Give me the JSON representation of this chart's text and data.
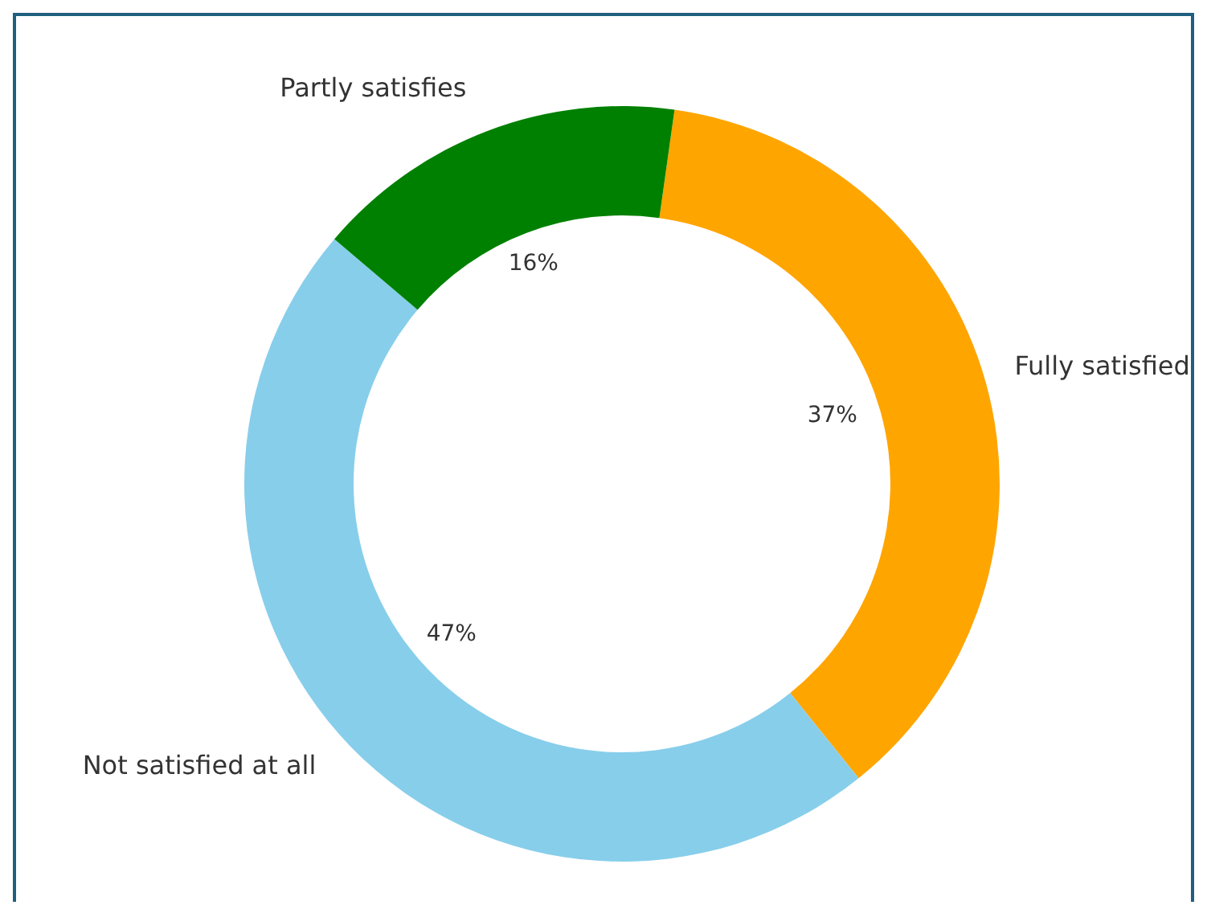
{
  "chart_data": {
    "type": "donut",
    "categories": [
      "Fully satisfied",
      "Not satisfied at all",
      "Partly satisfies"
    ],
    "values": [
      37,
      47,
      16
    ],
    "colors": [
      "#ffa500",
      "#87ceeb",
      "#008000"
    ],
    "value_labels": [
      "37%",
      "47%",
      "16%"
    ],
    "legend": false
  }
}
